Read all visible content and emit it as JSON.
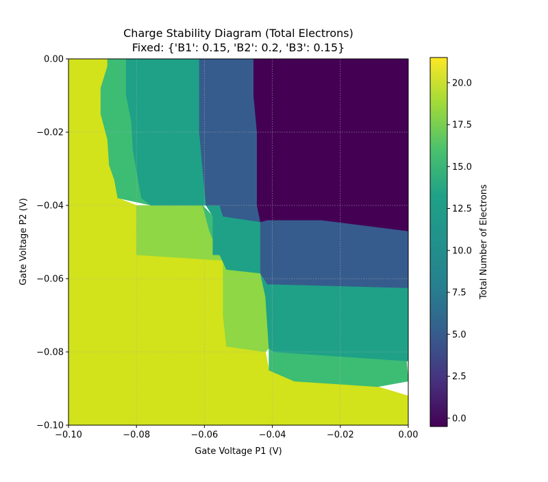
{
  "chart_data": {
    "type": "heatmap",
    "title_line1": "Charge Stability Diagram (Total Electrons)",
    "title_line2": "Fixed: {'B1': 0.15, 'B2': 0.2, 'B3': 0.15}",
    "xlabel": "Gate Voltage P1 (V)",
    "ylabel": "Gate Voltage P2 (V)",
    "xlim": [
      -0.1,
      0.0
    ],
    "ylim": [
      -0.1,
      0.0
    ],
    "x_ticks": [
      "−0.10",
      "−0.08",
      "−0.06",
      "−0.04",
      "−0.02",
      "0.00"
    ],
    "y_ticks": [
      "0.00",
      "−0.02",
      "−0.04",
      "−0.06",
      "−0.08",
      "−0.10"
    ],
    "grid": true,
    "colorbar": {
      "label": "Total Number of Electrons",
      "range": [
        -0.5,
        21.5
      ],
      "ticks": [
        "0.0",
        "2.5",
        "5.0",
        "7.5",
        "10.0",
        "12.5",
        "15.0",
        "17.5",
        "20.0"
      ],
      "colormap": "viridis"
    },
    "regions": [
      {
        "electrons": 21,
        "color": "#d2e21b",
        "polygon": [
          [
            -0.1,
            0
          ],
          [
            -0.0885,
            0
          ],
          [
            -0.0885,
            -0.002
          ],
          [
            -0.0905,
            -0.008
          ],
          [
            -0.0905,
            -0.015
          ],
          [
            -0.0885,
            -0.022
          ],
          [
            -0.088,
            -0.029
          ],
          [
            -0.0865,
            -0.033
          ],
          [
            -0.0855,
            -0.038
          ],
          [
            -0.08,
            -0.04
          ],
          [
            -0.08,
            -0.0535
          ],
          [
            -0.0545,
            -0.055
          ],
          [
            -0.0545,
            -0.07
          ],
          [
            -0.0535,
            -0.0785
          ],
          [
            -0.042,
            -0.08
          ],
          [
            -0.041,
            -0.085
          ],
          [
            -0.0335,
            -0.088
          ],
          [
            -0.009,
            -0.0895
          ],
          [
            0,
            -0.092
          ],
          [
            0,
            -0.1
          ],
          [
            -0.1,
            -0.1
          ]
        ]
      },
      {
        "electrons": 18,
        "color": "#8fd744",
        "polygon": [
          [
            -0.08,
            -0.04
          ],
          [
            -0.0605,
            -0.04
          ],
          [
            -0.0585,
            -0.047
          ],
          [
            -0.0555,
            -0.0535
          ],
          [
            -0.0545,
            -0.055
          ],
          [
            -0.0535,
            -0.0575
          ],
          [
            -0.0435,
            -0.0585
          ],
          [
            -0.042,
            -0.065
          ],
          [
            -0.041,
            -0.079
          ],
          [
            -0.042,
            -0.08
          ],
          [
            -0.0535,
            -0.0785
          ],
          [
            -0.0545,
            -0.07
          ],
          [
            -0.0545,
            -0.055
          ],
          [
            -0.08,
            -0.0535
          ]
        ]
      },
      {
        "electrons": 16,
        "color": "#3dbc74",
        "polygon": [
          [
            -0.0885,
            0
          ],
          [
            -0.083,
            0
          ],
          [
            -0.083,
            -0.01
          ],
          [
            -0.0815,
            -0.017
          ],
          [
            -0.081,
            -0.025
          ],
          [
            -0.0795,
            -0.033
          ],
          [
            -0.0785,
            -0.038
          ],
          [
            -0.0765,
            -0.0395
          ],
          [
            -0.0755,
            -0.04
          ],
          [
            -0.0855,
            -0.038
          ],
          [
            -0.0865,
            -0.033
          ],
          [
            -0.088,
            -0.029
          ],
          [
            -0.0885,
            -0.022
          ],
          [
            -0.0905,
            -0.015
          ],
          [
            -0.0905,
            -0.008
          ],
          [
            -0.0885,
            -0.002
          ]
        ]
      },
      {
        "electrons": 16,
        "color": "#3dbc74",
        "polygon": [
          [
            -0.0605,
            -0.04
          ],
          [
            -0.0575,
            -0.043
          ],
          [
            -0.0575,
            -0.0535
          ],
          [
            -0.0555,
            -0.0535
          ],
          [
            -0.0585,
            -0.047
          ]
        ]
      },
      {
        "electrons": 16,
        "color": "#3dbc74",
        "polygon": [
          [
            -0.041,
            -0.079
          ],
          [
            -0.0395,
            -0.08
          ],
          [
            -0.0005,
            -0.0825
          ],
          [
            0,
            -0.088
          ],
          [
            -0.009,
            -0.0895
          ],
          [
            -0.0335,
            -0.088
          ],
          [
            -0.041,
            -0.085
          ]
        ]
      },
      {
        "electrons": 13,
        "color": "#1fa187",
        "polygon": [
          [
            -0.083,
            0
          ],
          [
            -0.0615,
            0
          ],
          [
            -0.0615,
            -0.02
          ],
          [
            -0.0605,
            -0.03
          ],
          [
            -0.0595,
            -0.04
          ],
          [
            -0.0575,
            -0.043
          ],
          [
            -0.0575,
            -0.0535
          ],
          [
            -0.0555,
            -0.0535
          ],
          [
            -0.0535,
            -0.0575
          ],
          [
            -0.0435,
            -0.0585
          ],
          [
            -0.0435,
            -0.0445
          ],
          [
            -0.0545,
            -0.043
          ],
          [
            -0.0555,
            -0.04
          ],
          [
            -0.0605,
            -0.04
          ],
          [
            -0.0755,
            -0.04
          ],
          [
            -0.0765,
            -0.0395
          ],
          [
            -0.0785,
            -0.038
          ],
          [
            -0.0795,
            -0.033
          ],
          [
            -0.081,
            -0.025
          ],
          [
            -0.0815,
            -0.017
          ],
          [
            -0.083,
            -0.01
          ]
        ]
      },
      {
        "electrons": 13,
        "color": "#1fa187",
        "polygon": [
          [
            -0.0435,
            -0.0585
          ],
          [
            -0.0415,
            -0.0615
          ],
          [
            0,
            -0.0625
          ],
          [
            0,
            -0.0825
          ],
          [
            -0.0395,
            -0.08
          ],
          [
            -0.041,
            -0.079
          ],
          [
            -0.042,
            -0.065
          ]
        ]
      },
      {
        "electrons": 7,
        "color": "#365c8d",
        "polygon": [
          [
            -0.0615,
            0
          ],
          [
            -0.0455,
            0
          ],
          [
            -0.0455,
            -0.01
          ],
          [
            -0.0445,
            -0.02
          ],
          [
            -0.0445,
            -0.04
          ],
          [
            -0.0435,
            -0.0445
          ],
          [
            -0.0545,
            -0.043
          ],
          [
            -0.0555,
            -0.04
          ],
          [
            -0.0595,
            -0.04
          ],
          [
            -0.0605,
            -0.03
          ],
          [
            -0.0615,
            -0.02
          ]
        ]
      },
      {
        "electrons": 7,
        "color": "#365c8d",
        "polygon": [
          [
            -0.0435,
            -0.0445
          ],
          [
            -0.0435,
            -0.0585
          ],
          [
            -0.0415,
            -0.0615
          ],
          [
            0,
            -0.0625
          ],
          [
            0,
            -0.047
          ],
          [
            -0.0255,
            -0.044
          ],
          [
            -0.0415,
            -0.044
          ]
        ]
      },
      {
        "electrons": 0,
        "color": "#440154",
        "polygon": [
          [
            -0.0455,
            0
          ],
          [
            0,
            0
          ],
          [
            0,
            -0.047
          ],
          [
            -0.0255,
            -0.044
          ],
          [
            -0.0415,
            -0.044
          ],
          [
            -0.0435,
            -0.0445
          ],
          [
            -0.0445,
            -0.04
          ],
          [
            -0.0445,
            -0.02
          ],
          [
            -0.0455,
            -0.01
          ]
        ]
      }
    ]
  }
}
